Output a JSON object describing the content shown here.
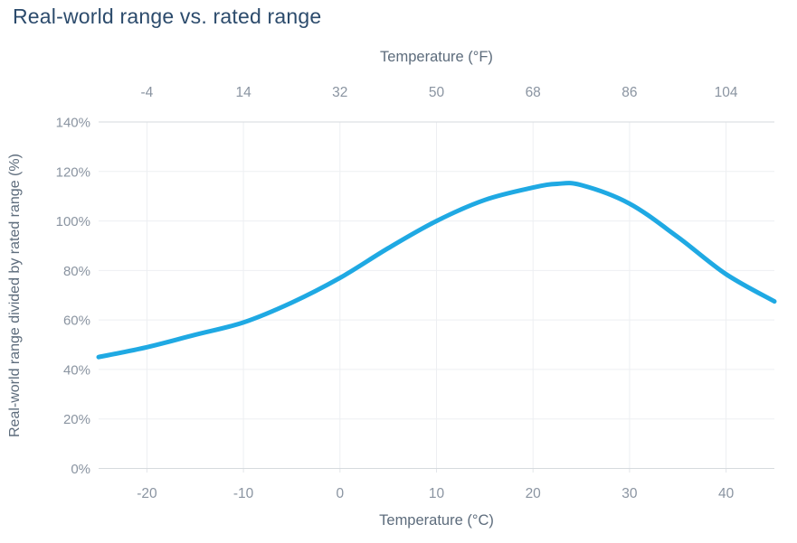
{
  "page": {
    "title": "Real-world range vs. rated range"
  },
  "chart_data": {
    "type": "line",
    "title": "Real-world range vs. rated range",
    "x_axis_bottom": {
      "label": "Temperature (°C)",
      "tick_labels": [
        "-20",
        "-10",
        "0",
        "10",
        "20",
        "30",
        "40"
      ],
      "tick_values": [
        -20,
        -10,
        0,
        10,
        20,
        30,
        40
      ],
      "range": [
        -25,
        45
      ]
    },
    "x_axis_top": {
      "label": "Temperature (°F)",
      "tick_labels": [
        "-4",
        "14",
        "32",
        "50",
        "68",
        "86",
        "104"
      ],
      "tick_values_fahrenheit": [
        -4,
        14,
        32,
        50,
        68,
        86,
        104
      ]
    },
    "y_axis": {
      "label": "Real-world range divided by rated range (%)",
      "tick_labels": [
        "0%",
        "20%",
        "40%",
        "60%",
        "80%",
        "100%",
        "120%",
        "140%"
      ],
      "tick_values": [
        0,
        20,
        40,
        60,
        80,
        100,
        120,
        140
      ],
      "range": [
        0,
        140
      ]
    },
    "grid": true,
    "legend": "none",
    "series": [
      {
        "name": "Real-world range divided by rated range (%)",
        "x_celsius": [
          -25,
          -20,
          -15,
          -10,
          -5,
          0,
          5,
          10,
          15,
          20,
          22.5,
          25,
          30,
          35,
          40,
          45
        ],
        "y_percent": [
          45,
          49,
          54,
          59,
          67,
          77,
          89,
          100,
          108.5,
          113.5,
          115,
          114.5,
          107,
          93.5,
          78.5,
          67.5
        ]
      }
    ],
    "colors": {
      "line": "#1fa9e3",
      "title": "#2c4b6c",
      "axis_label": "#5d6c7c",
      "tick_label": "#8a94a1",
      "gridline": "#edeff2",
      "axis_line": "#d6dade",
      "background": "#ffffff"
    }
  }
}
